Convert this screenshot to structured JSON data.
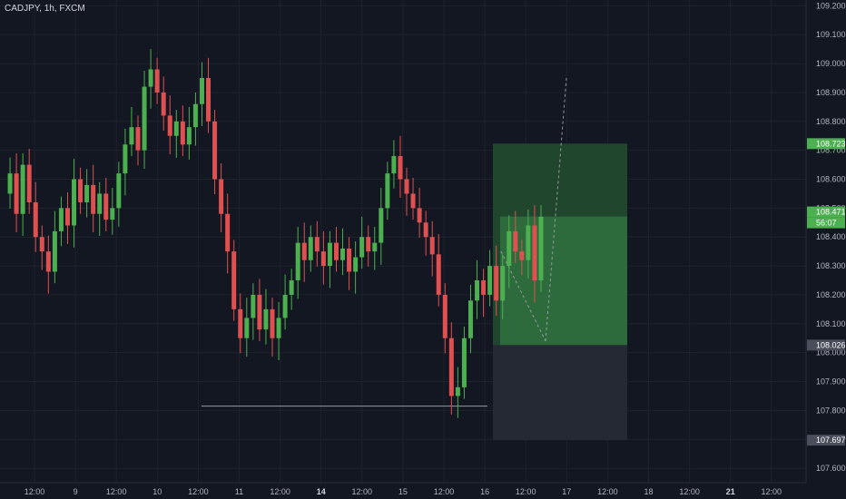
{
  "header": {
    "symbol": "CADJPY, 1h, FXCM"
  },
  "colors": {
    "background": "#131722",
    "up": "#4caf50",
    "down": "#e05050",
    "grid": "#1e222d",
    "profit_zone": "#2e6b3c",
    "target_zone": "#20462d",
    "stop_zone": "#252934"
  },
  "chart_data": {
    "type": "candlestick",
    "title": "CADJPY, 1h, FXCM",
    "ylim": [
      107.55,
      109.22
    ],
    "y_ticks": [
      "109.200",
      "109.100",
      "109.000",
      "108.900",
      "108.800",
      "108.700",
      "108.600",
      "108.500",
      "108.400",
      "108.300",
      "108.200",
      "108.100",
      "108.000",
      "107.900",
      "107.800",
      "107.700",
      "107.600"
    ],
    "x_ticks": [
      {
        "label": "12:00",
        "bold": false
      },
      {
        "label": "9",
        "bold": false
      },
      {
        "label": "12:00",
        "bold": false
      },
      {
        "label": "10",
        "bold": false
      },
      {
        "label": "12:00",
        "bold": false
      },
      {
        "label": "11",
        "bold": false
      },
      {
        "label": "12:00",
        "bold": false
      },
      {
        "label": "14",
        "bold": true
      },
      {
        "label": "12:00",
        "bold": false
      },
      {
        "label": "15",
        "bold": false
      },
      {
        "label": "12:00",
        "bold": false
      },
      {
        "label": "16",
        "bold": false
      },
      {
        "label": "12:00",
        "bold": false
      },
      {
        "label": "17",
        "bold": false
      },
      {
        "label": "12:00",
        "bold": false
      },
      {
        "label": "18",
        "bold": false
      },
      {
        "label": "12:00",
        "bold": false
      },
      {
        "label": "21",
        "bold": true
      },
      {
        "label": "12:00",
        "bold": false
      }
    ],
    "price_path": [
      108.55,
      108.62,
      108.48,
      108.65,
      108.52,
      108.4,
      108.35,
      108.28,
      108.42,
      108.5,
      108.44,
      108.6,
      108.52,
      108.58,
      108.48,
      108.55,
      108.46,
      108.5,
      108.62,
      108.72,
      108.78,
      108.7,
      108.92,
      108.98,
      108.9,
      108.82,
      108.75,
      108.8,
      108.72,
      108.78,
      108.86,
      108.95,
      108.8,
      108.6,
      108.48,
      108.35,
      108.15,
      108.05,
      108.12,
      108.2,
      108.08,
      108.15,
      108.05,
      108.12,
      108.2,
      108.25,
      108.38,
      108.32,
      108.4,
      108.35,
      108.3,
      108.38,
      108.32,
      108.36,
      108.28,
      108.33,
      108.4,
      108.35,
      108.38,
      108.5,
      108.62,
      108.68,
      108.6,
      108.55,
      108.5,
      108.45,
      108.4,
      108.34,
      108.2,
      108.05,
      107.85,
      107.88,
      108.05,
      108.18,
      108.25,
      108.2,
      108.3,
      108.18,
      108.3,
      108.42,
      108.35,
      108.32,
      108.44,
      108.25,
      108.47
    ],
    "reference_line": 107.815,
    "position": {
      "entry": 108.026,
      "target": 108.723,
      "stop": 107.697,
      "current": 108.471
    },
    "price_labels": [
      {
        "text": "108.723",
        "kind": "target"
      },
      {
        "text": "108.471",
        "kind": "current"
      },
      {
        "text": "56:07",
        "kind": "countdown"
      },
      {
        "text": "108.026",
        "kind": "entry"
      },
      {
        "text": "107.697",
        "kind": "stop"
      }
    ]
  }
}
